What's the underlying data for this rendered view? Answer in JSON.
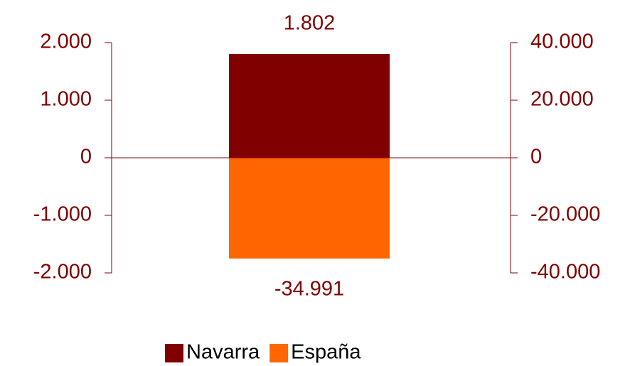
{
  "chart_data": {
    "type": "bar",
    "categories": [
      null
    ],
    "series": [
      {
        "name": "Navarra",
        "color": "#800000",
        "values": [
          1802
        ],
        "value_labels": [
          "1.802"
        ]
      },
      {
        "name": "España",
        "color": "#ff6600",
        "values": [
          -34991
        ],
        "value_labels": [
          "-34.991"
        ],
        "axis": "y2"
      }
    ],
    "ylim": [
      -2000,
      2000
    ],
    "yticks": [
      {
        "value": 2000,
        "label": "2.000"
      },
      {
        "value": 1000,
        "label": "1.000"
      },
      0,
      {
        "value": -1000,
        "label": "-1.000"
      },
      {
        "value": -2000,
        "label": "-2.000"
      }
    ],
    "y2lim": [
      -40000,
      40000
    ],
    "y2ticks": [
      {
        "value": 40000,
        "label": "40.000"
      },
      {
        "value": 20000,
        "label": "20.000"
      },
      0,
      {
        "value": -20000,
        "label": "-20.000"
      },
      {
        "value": -40000,
        "label": "-40.000"
      }
    ],
    "legend": "bottom"
  }
}
